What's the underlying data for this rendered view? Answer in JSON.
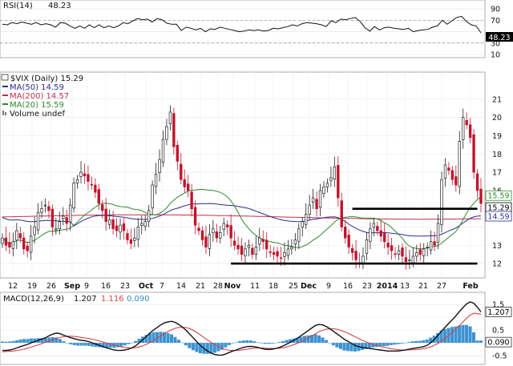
{
  "chart_data": [
    {
      "type": "line",
      "panel": "rsi",
      "label_name": "RSI(14)",
      "label_value": "48.23",
      "last_value_box": "48.23",
      "ylim": [
        10,
        100
      ],
      "yticks": [
        "90",
        "70",
        "50",
        "30",
        "10"
      ],
      "reference_lines": [
        70,
        30
      ],
      "series": [
        {
          "values": [
            63,
            62,
            66,
            64,
            67,
            65,
            63,
            66,
            62,
            64,
            62,
            58,
            66,
            65,
            60,
            56,
            60,
            56,
            62,
            57,
            62,
            57,
            60,
            57,
            60,
            66,
            64,
            69,
            73,
            71,
            72,
            67,
            73,
            71,
            65,
            63,
            63,
            52,
            58,
            56,
            53,
            56,
            50,
            55,
            54,
            58,
            56,
            54,
            52,
            50,
            51,
            53,
            52,
            53,
            51,
            52,
            56,
            55,
            57,
            59,
            62,
            60,
            64,
            66,
            65,
            64,
            62,
            59,
            69,
            66,
            72,
            71,
            73,
            75,
            68,
            57,
            51,
            59,
            53,
            57,
            58,
            56,
            55,
            54,
            56,
            50,
            52,
            53,
            54,
            58,
            60,
            70,
            63,
            69,
            75,
            77,
            68,
            62,
            60,
            48
          ]
        }
      ]
    },
    {
      "type": "candlestick",
      "panel": "price",
      "title": "$VIX (Daily) 15.29",
      "legend": [
        "MA(50) 14.59",
        "MA(200) 14.57",
        "MA(20) 15.59",
        "Volume undef"
      ],
      "ylim": [
        11.3,
        22.4
      ],
      "yticks": [
        "21",
        "20",
        "19",
        "18",
        "17",
        "16",
        "15",
        "14",
        "13",
        "12"
      ],
      "price_boxes": {
        "ma20": "15.59",
        "last": "15.29",
        "ma50": "14.59"
      },
      "x_ticks": [
        "12",
        "19",
        "26",
        "Sep",
        "9",
        "16",
        "23",
        "Oct",
        "7",
        "14",
        "21",
        "28",
        "Nov",
        "11",
        "18",
        "25",
        "Dec",
        "9",
        "16",
        "23",
        "2014",
        "13",
        "21",
        "27",
        "Feb"
      ],
      "x_ticks_bold": [
        "Sep",
        "Oct",
        "Nov",
        "Dec",
        "2014",
        "Feb"
      ],
      "support_resistance": [
        {
          "value": 15.0,
          "from_session": 98,
          "to_session": 133
        },
        {
          "value": 12.0,
          "from_session": 64,
          "to_session": 133
        }
      ],
      "closes": [
        13.4,
        13.0,
        12.9,
        13.2,
        13.8,
        13.4,
        12.8,
        12.7,
        13.5,
        14.0,
        14.8,
        15.0,
        15.2,
        14.9,
        14.0,
        13.9,
        14.3,
        14.6,
        14.2,
        15.2,
        16.4,
        16.6,
        17.0,
        16.8,
        16.5,
        16.3,
        15.9,
        15.3,
        14.9,
        14.3,
        14.4,
        13.9,
        13.8,
        14.1,
        13.8,
        13.3,
        13.1,
        13.4,
        14.0,
        14.2,
        14.3,
        14.9,
        16.3,
        16.9,
        17.7,
        18.8,
        19.5,
        20.3,
        18.4,
        17.6,
        16.6,
        16.2,
        16.0,
        15.0,
        14.1,
        13.8,
        13.3,
        12.9,
        13.6,
        13.9,
        13.4,
        13.7,
        14.2,
        14.0,
        13.4,
        13.0,
        12.8,
        12.5,
        12.8,
        13.0,
        12.5,
        12.9,
        13.4,
        13.2,
        12.8,
        12.6,
        12.5,
        12.4,
        12.3,
        12.6,
        12.8,
        12.9,
        13.3,
        13.9,
        14.3,
        14.7,
        15.2,
        15.6,
        15.0,
        16.0,
        16.2,
        16.4,
        16.7,
        17.3,
        15.6,
        14.0,
        13.4,
        12.9,
        12.6,
        12.2,
        12.0,
        12.4,
        13.3,
        13.9,
        14.2,
        13.8,
        13.5,
        13.2,
        12.9,
        12.7,
        12.5,
        12.7,
        12.4,
        12.1,
        12.2,
        12.4,
        12.6,
        12.5,
        12.8,
        12.9,
        13.2,
        13.0,
        14.2,
        16.6,
        17.4,
        17.1,
        16.6,
        16.3,
        18.7,
        20.0,
        19.6,
        18.9,
        17.0,
        16.0,
        15.29
      ]
    },
    {
      "type": "line",
      "panel": "macd",
      "title": "MACD(12,26,9)",
      "label_values": [
        "1.207",
        "1.116",
        "0.090"
      ],
      "label_colors": [
        "#111111",
        "#d0454a",
        "#2b8fcf"
      ],
      "ylim": [
        -0.75,
        1.85
      ],
      "yticks": [
        "1.5",
        "1.0",
        "0.5",
        "0",
        "-0.5"
      ],
      "boxes": {
        "macd": "1.207",
        "histogram": "0.090"
      },
      "series": [
        {
          "name": "MACD",
          "color": "#111111",
          "values": [
            -0.3,
            -0.3,
            -0.28,
            -0.25,
            -0.2,
            -0.15,
            -0.1,
            -0.06,
            0.0,
            0.05,
            0.1,
            0.15,
            0.2,
            0.28,
            0.34,
            0.38,
            0.36,
            0.3,
            0.25,
            0.2,
            0.16,
            0.12,
            0.1,
            0.08,
            0.05,
            0.0,
            -0.05,
            -0.1,
            -0.15,
            -0.2,
            -0.24,
            -0.28,
            -0.3,
            -0.3,
            -0.28,
            -0.25,
            -0.2,
            -0.12,
            0.0,
            0.12,
            0.25,
            0.38,
            0.5,
            0.6,
            0.7,
            0.78,
            0.82,
            0.84,
            0.8,
            0.72,
            0.62,
            0.5,
            0.35,
            0.2,
            0.05,
            -0.1,
            -0.22,
            -0.32,
            -0.4,
            -0.46,
            -0.48,
            -0.48,
            -0.44,
            -0.38,
            -0.32,
            -0.28,
            -0.22,
            -0.18,
            -0.15,
            -0.14,
            -0.15,
            -0.18,
            -0.22,
            -0.25,
            -0.26,
            -0.25,
            -0.22,
            -0.18,
            -0.12,
            -0.05,
            0.02,
            0.1,
            0.18,
            0.28,
            0.38,
            0.48,
            0.58,
            0.68,
            0.72,
            0.7,
            0.64,
            0.55,
            0.45,
            0.35,
            0.25,
            0.14,
            0.06,
            -0.02,
            -0.1,
            -0.15,
            -0.18,
            -0.2,
            -0.22,
            -0.24,
            -0.26,
            -0.28,
            -0.3,
            -0.32,
            -0.32,
            -0.32,
            -0.32,
            -0.3,
            -0.28,
            -0.25,
            -0.22,
            -0.2,
            -0.18,
            -0.15,
            -0.1,
            0.0,
            0.12,
            0.28,
            0.45,
            0.6,
            0.75,
            0.9,
            1.05,
            1.22,
            1.38,
            1.52,
            1.6,
            1.55,
            1.4,
            1.207
          ]
        },
        {
          "name": "Signal",
          "color": "#d0454a",
          "values": [
            -0.35,
            -0.34,
            -0.33,
            -0.32,
            -0.3,
            -0.28,
            -0.25,
            -0.21,
            -0.17,
            -0.12,
            -0.08,
            -0.03,
            0.02,
            0.07,
            0.12,
            0.17,
            0.21,
            0.24,
            0.26,
            0.26,
            0.25,
            0.23,
            0.21,
            0.19,
            0.17,
            0.14,
            0.11,
            0.07,
            0.03,
            -0.01,
            -0.05,
            -0.09,
            -0.13,
            -0.16,
            -0.18,
            -0.2,
            -0.2,
            -0.19,
            -0.16,
            -0.12,
            -0.06,
            0.01,
            0.09,
            0.18,
            0.27,
            0.36,
            0.44,
            0.51,
            0.57,
            0.6,
            0.61,
            0.6,
            0.56,
            0.49,
            0.41,
            0.31,
            0.21,
            0.11,
            0.02,
            -0.07,
            -0.15,
            -0.21,
            -0.26,
            -0.29,
            -0.3,
            -0.3,
            -0.29,
            -0.27,
            -0.25,
            -0.23,
            -0.21,
            -0.2,
            -0.2,
            -0.21,
            -0.22,
            -0.22,
            -0.22,
            -0.21,
            -0.19,
            -0.16,
            -0.12,
            -0.07,
            -0.02,
            0.04,
            0.11,
            0.19,
            0.27,
            0.35,
            0.43,
            0.49,
            0.53,
            0.55,
            0.55,
            0.53,
            0.49,
            0.44,
            0.38,
            0.31,
            0.24,
            0.17,
            0.1,
            0.04,
            -0.01,
            -0.06,
            -0.1,
            -0.14,
            -0.17,
            -0.2,
            -0.23,
            -0.25,
            -0.27,
            -0.28,
            -0.28,
            -0.28,
            -0.27,
            -0.26,
            -0.25,
            -0.23,
            -0.2,
            -0.16,
            -0.1,
            -0.03,
            0.06,
            0.17,
            0.28,
            0.41,
            0.54,
            0.68,
            0.82,
            0.96,
            1.08,
            1.16,
            1.14,
            1.116
          ]
        },
        {
          "name": "Histogram",
          "color": "#2b8fcf",
          "type": "bar",
          "values": [
            0.05,
            0.04,
            0.05,
            0.07,
            0.1,
            0.13,
            0.15,
            0.15,
            0.17,
            0.17,
            0.18,
            0.18,
            0.18,
            0.21,
            0.22,
            0.21,
            0.15,
            0.06,
            -0.01,
            -0.06,
            -0.09,
            -0.11,
            -0.11,
            -0.11,
            -0.12,
            -0.14,
            -0.16,
            -0.17,
            -0.18,
            -0.19,
            -0.19,
            -0.19,
            -0.17,
            -0.14,
            -0.1,
            -0.05,
            0.0,
            0.07,
            0.16,
            0.24,
            0.31,
            0.37,
            0.41,
            0.42,
            0.43,
            0.42,
            0.38,
            0.33,
            0.23,
            0.12,
            0.01,
            -0.1,
            -0.21,
            -0.29,
            -0.36,
            -0.41,
            -0.43,
            -0.43,
            -0.42,
            -0.39,
            -0.33,
            -0.27,
            -0.18,
            -0.09,
            -0.02,
            0.02,
            0.07,
            0.09,
            0.1,
            0.09,
            0.06,
            0.02,
            -0.02,
            -0.04,
            -0.04,
            -0.03,
            0.0,
            0.03,
            0.07,
            0.11,
            0.14,
            0.17,
            0.2,
            0.24,
            0.27,
            0.29,
            0.31,
            0.33,
            0.29,
            0.21,
            0.11,
            0.0,
            -0.1,
            -0.18,
            -0.24,
            -0.3,
            -0.32,
            -0.33,
            -0.34,
            -0.32,
            -0.28,
            -0.24,
            -0.21,
            -0.18,
            -0.16,
            -0.14,
            -0.13,
            -0.12,
            -0.09,
            -0.07,
            -0.05,
            -0.03,
            0.0,
            0.03,
            0.06,
            0.07,
            0.08,
            0.1,
            0.13,
            0.2,
            0.28,
            0.38,
            0.48,
            0.54,
            0.58,
            0.62,
            0.64,
            0.68,
            0.7,
            0.7,
            0.64,
            0.41,
            0.09,
            0.09
          ]
        }
      ]
    }
  ]
}
